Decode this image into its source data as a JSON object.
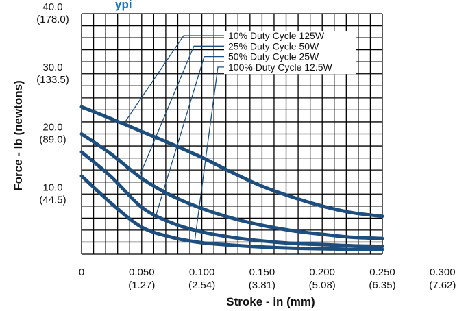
{
  "title_fragment": "ypi",
  "colors": {
    "series": "#1d4e7e",
    "grid": "#000000",
    "title": "#1b75bb"
  },
  "chart_data": {
    "type": "line",
    "xlabel": "Stroke - in (mm)",
    "ylabel": "Force - lb (newtons)",
    "xlim": [
      0,
      0.3
    ],
    "ylim": [
      0,
      40.0
    ],
    "grid": true,
    "x_ticks": [
      {
        "value": 0,
        "label": "0",
        "sublabel": ""
      },
      {
        "value": 0.05,
        "label": "0.050",
        "sublabel": "(1.27)"
      },
      {
        "value": 0.1,
        "label": "0.100",
        "sublabel": "(2.54)"
      },
      {
        "value": 0.15,
        "label": "0.150",
        "sublabel": "(3.81)"
      },
      {
        "value": 0.2,
        "label": "0.200",
        "sublabel": "(5.08)"
      },
      {
        "value": 0.25,
        "label": "0.250",
        "sublabel": "(6.35)"
      },
      {
        "value": 0.3,
        "label": "0.300",
        "sublabel": "(7.62)"
      }
    ],
    "y_ticks": [
      {
        "value": 10,
        "label": "10.0",
        "sublabel": "(44.5)"
      },
      {
        "value": 20,
        "label": "20.0",
        "sublabel": "(89.0)"
      },
      {
        "value": 30,
        "label": "30.0",
        "sublabel": "(133.5)"
      },
      {
        "value": 40,
        "label": "40.0",
        "sublabel": "(178.0)"
      }
    ],
    "legend_placement": "top-center",
    "series": [
      {
        "name": "10% Duty Cycle 125W",
        "x": [
          0,
          0.025,
          0.05,
          0.075,
          0.1,
          0.125,
          0.15,
          0.175,
          0.2,
          0.225,
          0.25
        ],
        "y": [
          24.5,
          22.5,
          20.4,
          18.3,
          16.1,
          13.6,
          11.3,
          9.5,
          8.0,
          6.9,
          6.3
        ],
        "label_leader_x": 0.035
      },
      {
        "name": "25% Duty Cycle 50W",
        "x": [
          0,
          0.025,
          0.05,
          0.075,
          0.1,
          0.125,
          0.15,
          0.175,
          0.2,
          0.225,
          0.25
        ],
        "y": [
          20.0,
          16.6,
          12.6,
          9.7,
          7.6,
          6.0,
          4.8,
          3.9,
          3.3,
          2.8,
          2.6
        ],
        "label_leader_x": 0.048
      },
      {
        "name": "50% Duty Cycle 25W",
        "x": [
          0,
          0.025,
          0.05,
          0.075,
          0.1,
          0.125,
          0.15,
          0.175,
          0.2,
          0.225,
          0.25
        ],
        "y": [
          17.0,
          12.8,
          7.8,
          5.2,
          3.7,
          2.8,
          2.2,
          1.8,
          1.6,
          1.4,
          1.3
        ],
        "label_leader_x": 0.062
      },
      {
        "name": "100% Duty Cycle 12.5W",
        "x": [
          0,
          0.025,
          0.05,
          0.075,
          0.1,
          0.125,
          0.15,
          0.175,
          0.2,
          0.225,
          0.25
        ],
        "y": [
          13.0,
          8.4,
          4.5,
          2.8,
          1.9,
          1.5,
          1.2,
          1.0,
          0.9,
          0.8,
          0.8
        ],
        "label_leader_x": 0.094
      }
    ]
  }
}
